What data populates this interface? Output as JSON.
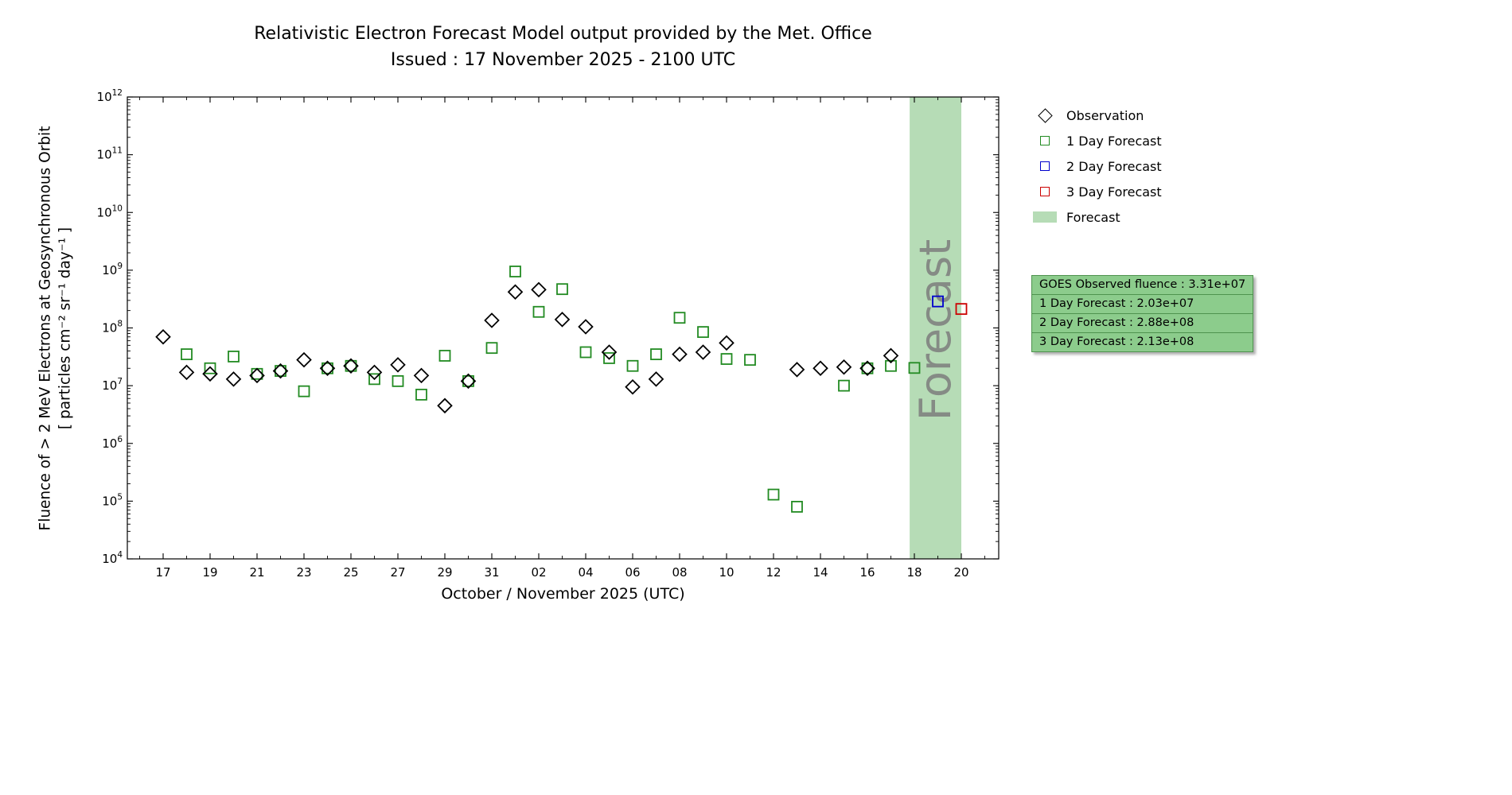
{
  "title": {
    "line1": "Relativistic Electron Forecast Model output provided by the Met. Office",
    "line2": "Issued : 17 November 2025 - 2100 UTC"
  },
  "axes": {
    "xlabel": "October / November 2025 (UTC)",
    "ylabel_line1": "Fluence of > 2 MeV Electrons at Geosynchronous Orbit",
    "ylabel_line2": "[ particles cm⁻² sr⁻¹ day⁻¹ ]"
  },
  "legend": {
    "items": [
      {
        "label": "Observation"
      },
      {
        "label": "1 Day Forecast"
      },
      {
        "label": "2 Day Forecast"
      },
      {
        "label": "3 Day Forecast"
      },
      {
        "label": "Forecast"
      }
    ]
  },
  "info_box": {
    "lines": [
      "GOES Observed fluence : 3.31e+07",
      "1 Day Forecast : 2.03e+07",
      "2 Day Forecast : 2.88e+08",
      "3 Day Forecast : 2.13e+08"
    ]
  },
  "chart_data": {
    "type": "scatter",
    "title": "Relativistic Electron Forecast Model output provided by the Met. Office",
    "subtitle": "Issued : 17 November 2025 - 2100 UTC",
    "xlabel": "October / November 2025 (UTC)",
    "ylabel": "Fluence of > 2 MeV Electrons at Geosynchronous Orbit [ particles cm⁻² sr⁻¹ day⁻¹ ]",
    "y_scale": "log10",
    "ylim": [
      10000.0,
      1000000000000.0
    ],
    "y_tick_exponents": [
      4,
      5,
      6,
      7,
      8,
      9,
      10,
      11,
      12
    ],
    "x_axis_note": "day 0 = 17 October 2025",
    "x_ticks": [
      {
        "day": 0,
        "label": "17"
      },
      {
        "day": 2,
        "label": "19"
      },
      {
        "day": 4,
        "label": "21"
      },
      {
        "day": 6,
        "label": "23"
      },
      {
        "day": 8,
        "label": "25"
      },
      {
        "day": 10,
        "label": "27"
      },
      {
        "day": 12,
        "label": "29"
      },
      {
        "day": 14,
        "label": "31"
      },
      {
        "day": 16,
        "label": "02"
      },
      {
        "day": 18,
        "label": "04"
      },
      {
        "day": 20,
        "label": "06"
      },
      {
        "day": 22,
        "label": "08"
      },
      {
        "day": 24,
        "label": "10"
      },
      {
        "day": 26,
        "label": "12"
      },
      {
        "day": 28,
        "label": "14"
      },
      {
        "day": 30,
        "label": "16"
      },
      {
        "day": 32,
        "label": "18"
      },
      {
        "day": 34,
        "label": "20"
      }
    ],
    "forecast_band": {
      "label": "Forecast",
      "start_day": 31.8,
      "end_day": 34.0,
      "color": "#b6dcb6"
    },
    "series": [
      {
        "name": "Observation",
        "marker": "diamond",
        "color": "#000000",
        "points": [
          {
            "date": "Oct 17",
            "day": 0,
            "value": 70000000.0
          },
          {
            "date": "Oct 18",
            "day": 1,
            "value": 17000000.0
          },
          {
            "date": "Oct 19",
            "day": 2,
            "value": 16000000.0
          },
          {
            "date": "Oct 20",
            "day": 3,
            "value": 13000000.0
          },
          {
            "date": "Oct 21",
            "day": 4,
            "value": 15000000.0
          },
          {
            "date": "Oct 22",
            "day": 5,
            "value": 18000000.0
          },
          {
            "date": "Oct 23",
            "day": 6,
            "value": 28000000.0
          },
          {
            "date": "Oct 24",
            "day": 7,
            "value": 20000000.0
          },
          {
            "date": "Oct 25",
            "day": 8,
            "value": 22000000.0
          },
          {
            "date": "Oct 26",
            "day": 9,
            "value": 17000000.0
          },
          {
            "date": "Oct 27",
            "day": 10,
            "value": 23000000.0
          },
          {
            "date": "Oct 28",
            "day": 11,
            "value": 15000000.0
          },
          {
            "date": "Oct 29",
            "day": 12,
            "value": 4500000.0
          },
          {
            "date": "Oct 30",
            "day": 13,
            "value": 12000000.0
          },
          {
            "date": "Oct 31",
            "day": 14,
            "value": 135000000.0
          },
          {
            "date": "Nov 01",
            "day": 15,
            "value": 420000000.0
          },
          {
            "date": "Nov 02",
            "day": 16,
            "value": 460000000.0
          },
          {
            "date": "Nov 03",
            "day": 17,
            "value": 140000000.0
          },
          {
            "date": "Nov 04",
            "day": 18,
            "value": 105000000.0
          },
          {
            "date": "Nov 05",
            "day": 19,
            "value": 38000000.0
          },
          {
            "date": "Nov 06",
            "day": 20,
            "value": 9500000.0
          },
          {
            "date": "Nov 07",
            "day": 21,
            "value": 13000000.0
          },
          {
            "date": "Nov 08",
            "day": 22,
            "value": 35000000.0
          },
          {
            "date": "Nov 09",
            "day": 23,
            "value": 38000000.0
          },
          {
            "date": "Nov 10",
            "day": 24,
            "value": 55000000.0
          },
          {
            "date": "Nov 13",
            "day": 27,
            "value": 19000000.0
          },
          {
            "date": "Nov 14",
            "day": 28,
            "value": 20000000.0
          },
          {
            "date": "Nov 15",
            "day": 29,
            "value": 21000000.0
          },
          {
            "date": "Nov 16",
            "day": 30,
            "value": 20000000.0
          },
          {
            "date": "Nov 17",
            "day": 31,
            "value": 33100000.0
          }
        ]
      },
      {
        "name": "1 Day Forecast",
        "marker": "square",
        "color": "#228b22",
        "points": [
          {
            "date": "Oct 18",
            "day": 1,
            "value": 35000000.0
          },
          {
            "date": "Oct 19",
            "day": 2,
            "value": 20000000.0
          },
          {
            "date": "Oct 20",
            "day": 3,
            "value": 32000000.0
          },
          {
            "date": "Oct 21",
            "day": 4,
            "value": 16000000.0
          },
          {
            "date": "Oct 22",
            "day": 5,
            "value": 18000000.0
          },
          {
            "date": "Oct 23",
            "day": 6,
            "value": 8000000.0
          },
          {
            "date": "Oct 24",
            "day": 7,
            "value": 20000000.0
          },
          {
            "date": "Oct 25",
            "day": 8,
            "value": 22000000.0
          },
          {
            "date": "Oct 26",
            "day": 9,
            "value": 13000000.0
          },
          {
            "date": "Oct 27",
            "day": 10,
            "value": 12000000.0
          },
          {
            "date": "Oct 28",
            "day": 11,
            "value": 7000000.0
          },
          {
            "date": "Oct 29",
            "day": 12,
            "value": 33000000.0
          },
          {
            "date": "Oct 30",
            "day": 13,
            "value": 12000000.0
          },
          {
            "date": "Oct 31",
            "day": 14,
            "value": 45000000.0
          },
          {
            "date": "Nov 01",
            "day": 15,
            "value": 950000000.0
          },
          {
            "date": "Nov 02",
            "day": 16,
            "value": 190000000.0
          },
          {
            "date": "Nov 03",
            "day": 17,
            "value": 470000000.0
          },
          {
            "date": "Nov 04",
            "day": 18,
            "value": 38000000.0
          },
          {
            "date": "Nov 05",
            "day": 19,
            "value": 30000000.0
          },
          {
            "date": "Nov 06",
            "day": 20,
            "value": 22000000.0
          },
          {
            "date": "Nov 07",
            "day": 21,
            "value": 35000000.0
          },
          {
            "date": "Nov 08",
            "day": 22,
            "value": 150000000.0
          },
          {
            "date": "Nov 09",
            "day": 23,
            "value": 85000000.0
          },
          {
            "date": "Nov 10",
            "day": 24,
            "value": 29000000.0
          },
          {
            "date": "Nov 11",
            "day": 25,
            "value": 28000000.0
          },
          {
            "date": "Nov 12",
            "day": 26,
            "value": 130000.0
          },
          {
            "date": "Nov 13",
            "day": 27,
            "value": 80000.0
          },
          {
            "date": "Nov 15",
            "day": 29,
            "value": 10000000.0
          },
          {
            "date": "Nov 16",
            "day": 30,
            "value": 20000000.0
          },
          {
            "date": "Nov 17",
            "day": 31,
            "value": 22000000.0
          },
          {
            "date": "Nov 18",
            "day": 32,
            "value": 20300000.0
          }
        ]
      },
      {
        "name": "2 Day Forecast",
        "marker": "square",
        "color": "#0000cc",
        "points": [
          {
            "date": "Nov 19",
            "day": 33,
            "value": 288000000.0
          }
        ]
      },
      {
        "name": "3 Day Forecast",
        "marker": "square",
        "color": "#cc0000",
        "points": [
          {
            "date": "Nov 20",
            "day": 34,
            "value": 213000000.0
          }
        ]
      }
    ]
  }
}
